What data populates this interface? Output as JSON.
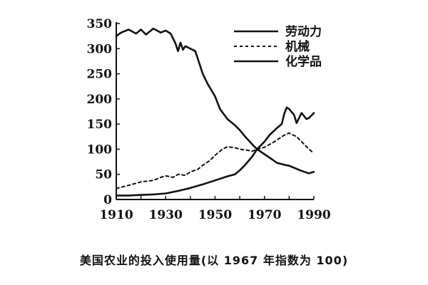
{
  "chart_data": {
    "type": "line",
    "title": "",
    "xlabel": "",
    "ylabel": "",
    "xlim": [
      1910,
      1990
    ],
    "ylim": [
      0,
      350
    ],
    "xticks": [
      1910,
      1930,
      1950,
      1970,
      1990
    ],
    "yticks": [
      0,
      50,
      100,
      150,
      200,
      250,
      300,
      350
    ],
    "grid": false,
    "legend_position": "top-right",
    "series": [
      {
        "name": "劳动力",
        "style": "solid",
        "color": "#111111",
        "x": [
          1910,
          1912,
          1915,
          1918,
          1920,
          1922,
          1925,
          1928,
          1930,
          1932,
          1934,
          1935,
          1936,
          1937,
          1938,
          1940,
          1942,
          1943,
          1945,
          1947,
          1950,
          1952,
          1955,
          1958,
          1960,
          1962,
          1965,
          1967,
          1970,
          1973,
          1975,
          1978,
          1980,
          1982,
          1985,
          1988,
          1990
        ],
        "y": [
          325,
          332,
          338,
          330,
          338,
          328,
          340,
          332,
          336,
          330,
          310,
          295,
          312,
          298,
          305,
          300,
          295,
          280,
          250,
          230,
          205,
          180,
          160,
          148,
          138,
          126,
          110,
          100,
          90,
          80,
          73,
          69,
          67,
          63,
          57,
          52,
          55
        ]
      },
      {
        "name": "机械",
        "style": "dashed",
        "color": "#111111",
        "x": [
          1910,
          1915,
          1920,
          1925,
          1928,
          1930,
          1933,
          1935,
          1938,
          1940,
          1943,
          1945,
          1948,
          1950,
          1953,
          1955,
          1958,
          1960,
          1963,
          1965,
          1967,
          1970,
          1973,
          1975,
          1978,
          1980,
          1983,
          1985,
          1988,
          1990
        ],
        "y": [
          22,
          28,
          35,
          38,
          44,
          47,
          44,
          50,
          48,
          55,
          60,
          68,
          78,
          88,
          100,
          105,
          103,
          100,
          98,
          96,
          100,
          104,
          112,
          118,
          128,
          132,
          125,
          115,
          100,
          92
        ]
      },
      {
        "name": "化学品",
        "style": "solid",
        "color": "#111111",
        "x": [
          1910,
          1915,
          1920,
          1925,
          1930,
          1935,
          1940,
          1945,
          1950,
          1955,
          1958,
          1960,
          1962,
          1965,
          1967,
          1970,
          1972,
          1975,
          1977,
          1978,
          1979,
          1980,
          1982,
          1983,
          1985,
          1987,
          1988,
          1990
        ],
        "y": [
          8,
          8,
          9,
          10,
          12,
          17,
          23,
          30,
          38,
          46,
          50,
          58,
          68,
          85,
          100,
          115,
          128,
          142,
          150,
          170,
          183,
          180,
          168,
          152,
          172,
          160,
          162,
          172
        ]
      }
    ]
  },
  "caption": "美国农业的投入使用量(以 1967 年指数为 100)"
}
